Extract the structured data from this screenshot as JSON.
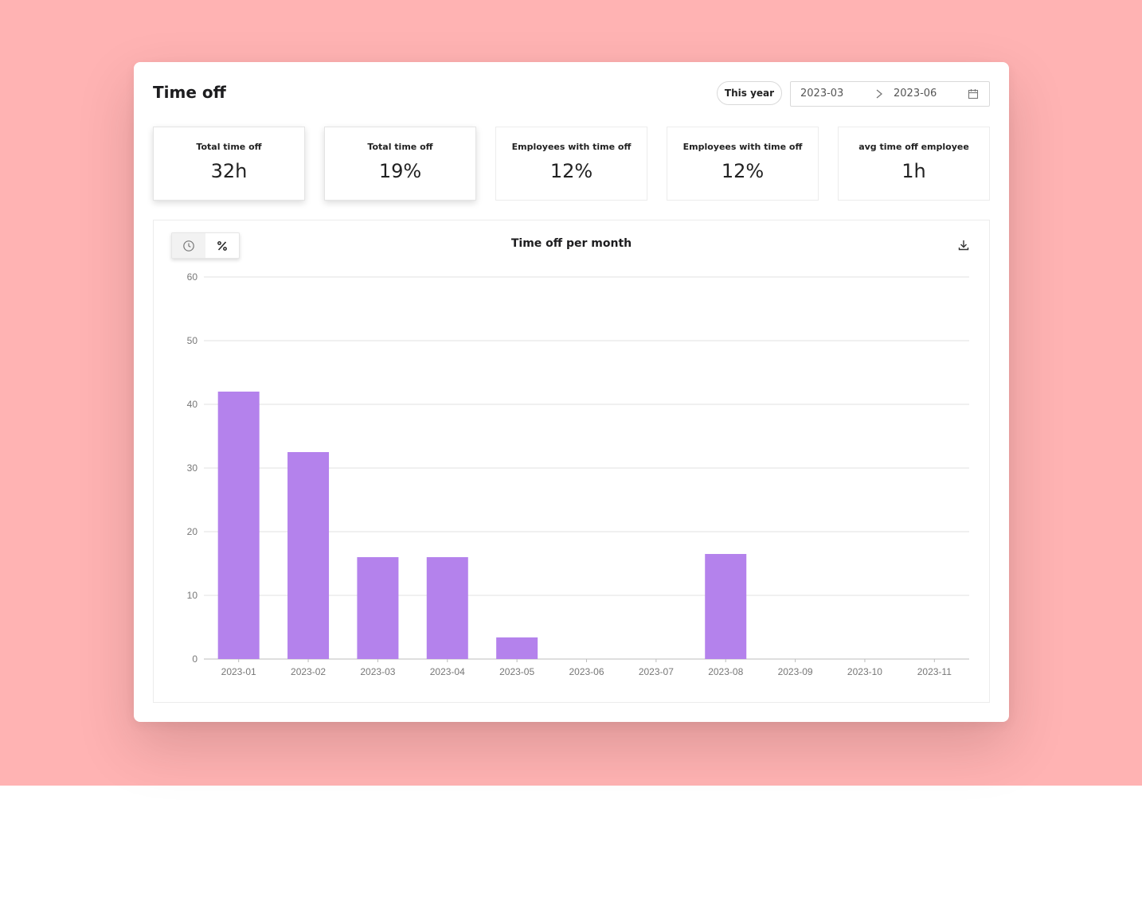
{
  "header": {
    "title": "Time off",
    "period_chip": "This year",
    "date_range": {
      "from": "2023-03",
      "to": "2023-06"
    }
  },
  "kpis": [
    {
      "label": "Total time off",
      "value": "32h"
    },
    {
      "label": "Total time off",
      "value": "19%"
    },
    {
      "label": "Employees with time off",
      "value": "12%"
    },
    {
      "label": "Employees with time off",
      "value": "12%"
    },
    {
      "label": "avg time off employee",
      "value": "1h"
    }
  ],
  "chart_toggle": {
    "options": [
      "clock-icon",
      "percent-icon"
    ],
    "selected": "clock-icon"
  },
  "colors": {
    "background": "#ffb3b3",
    "bar": "#b482ec",
    "grid": "#e2e2e2"
  },
  "chart_data": {
    "type": "bar",
    "title": "Time off per month",
    "xlabel": "",
    "ylabel": "",
    "categories": [
      "2023-01",
      "2023-02",
      "2023-03",
      "2023-04",
      "2023-05",
      "2023-06",
      "2023-07",
      "2023-08",
      "2023-09",
      "2023-10",
      "2023-11"
    ],
    "values": [
      42,
      32.5,
      16,
      16,
      3.4,
      0,
      0,
      16.5,
      0,
      0,
      0
    ],
    "yticks": [
      0,
      10,
      20,
      30,
      40,
      50,
      60
    ],
    "ylim": [
      0,
      60
    ],
    "grid": true,
    "legend": "none"
  }
}
